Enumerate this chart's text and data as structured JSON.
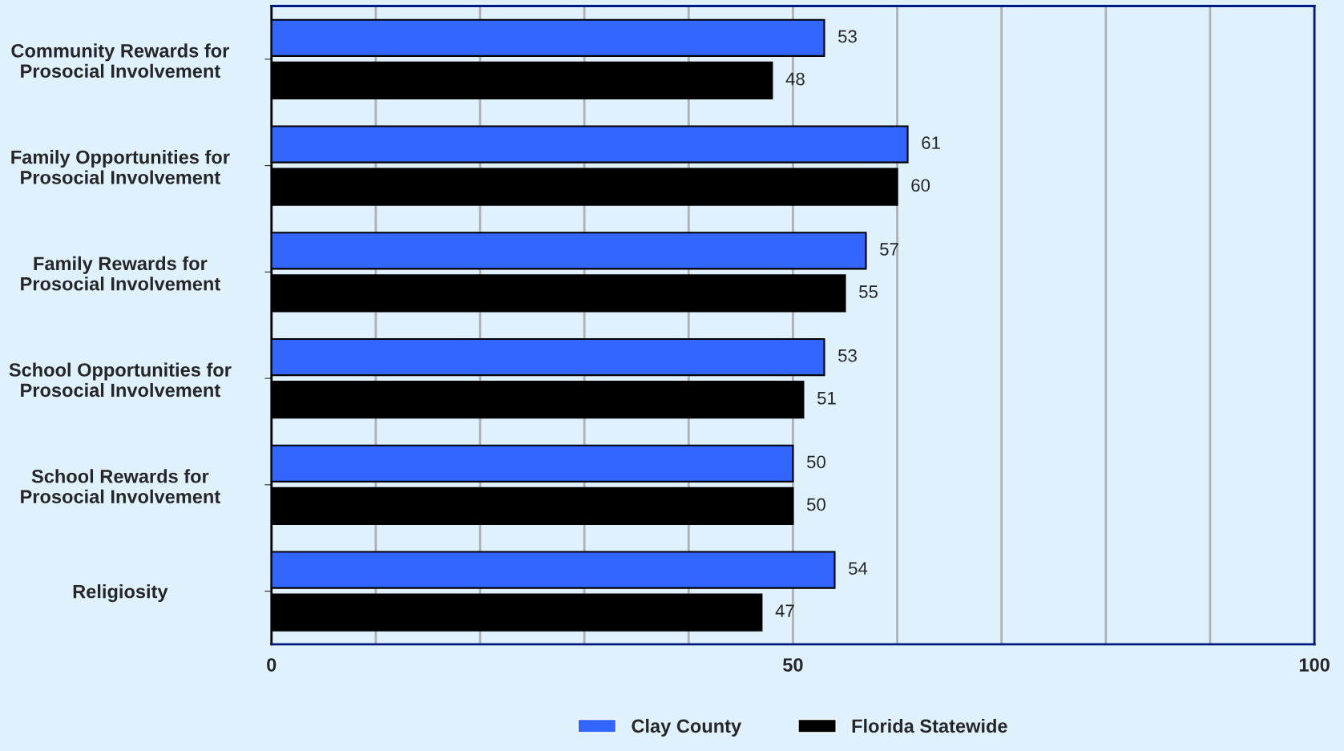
{
  "chart_data": {
    "type": "bar",
    "orientation": "horizontal",
    "categories": [
      "Community Rewards for\nProsocial Involvement",
      "Family Opportunities for\nProsocial Involvement",
      "Family Rewards for\nProsocial Involvement",
      "School Opportunities for\nProsocial Involvement",
      "School Rewards for\nProsocial Involvement",
      "Religiosity"
    ],
    "series": [
      {
        "name": "Clay County",
        "color": "#3366ff",
        "values": [
          53,
          61,
          57,
          53,
          50,
          54
        ]
      },
      {
        "name": "Florida Statewide",
        "color": "#000000",
        "values": [
          48,
          60,
          55,
          51,
          50,
          47
        ]
      }
    ],
    "xlim": [
      0,
      100
    ],
    "xticks": [
      0,
      {
        "value": 10,
        "label": null
      },
      {
        "value": 20,
        "label": null
      },
      {
        "value": 30,
        "label": null
      },
      {
        "value": 40,
        "label": null
      },
      50,
      {
        "value": 60,
        "label": null
      },
      {
        "value": 70,
        "label": null
      },
      {
        "value": 80,
        "label": null
      },
      {
        "value": 90,
        "label": null
      },
      100
    ],
    "grid": "x",
    "legend": "bottom",
    "data_labels": true
  }
}
